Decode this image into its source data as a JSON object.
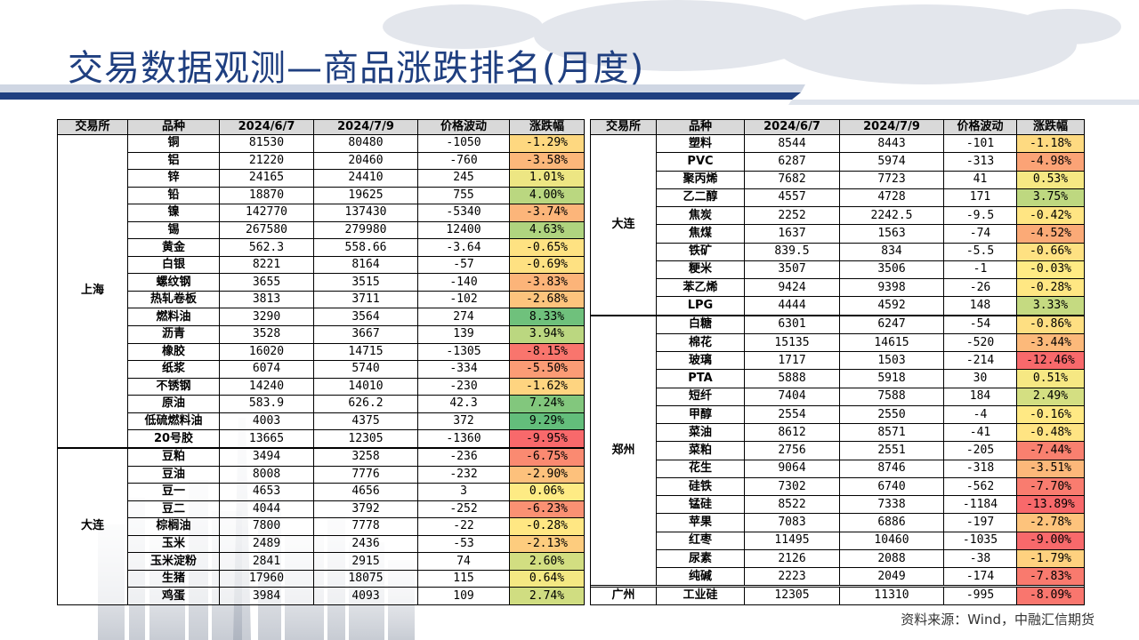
{
  "title": "交易数据观测—商品涨跌排名(月度)",
  "headers": [
    "交易所",
    "品种",
    "2024/6/7",
    "2024/7/9",
    "价格波动",
    "涨跌幅"
  ],
  "colors": {
    "title": "#1f3f80",
    "decline_strong": "#f8696b",
    "rise_strong": "#63be7b",
    "neutral": "#ffeb84"
  },
  "left_table": {
    "groups": [
      {
        "exchange": "上海",
        "rows": [
          {
            "name": "铜",
            "p1": "81530",
            "p2": "80480",
            "diff": "-1050",
            "pct": "-1.29%",
            "v": -1.29
          },
          {
            "name": "铝",
            "p1": "21220",
            "p2": "20460",
            "diff": "-760",
            "pct": "-3.58%",
            "v": -3.58
          },
          {
            "name": "锌",
            "p1": "24165",
            "p2": "24410",
            "diff": "245",
            "pct": "1.01%",
            "v": 1.01
          },
          {
            "name": "铅",
            "p1": "18870",
            "p2": "19625",
            "diff": "755",
            "pct": "4.00%",
            "v": 4.0
          },
          {
            "name": "镍",
            "p1": "142770",
            "p2": "137430",
            "diff": "-5340",
            "pct": "-3.74%",
            "v": -3.74
          },
          {
            "name": "锡",
            "p1": "267580",
            "p2": "279980",
            "diff": "12400",
            "pct": "4.63%",
            "v": 4.63
          },
          {
            "name": "黄金",
            "p1": "562.3",
            "p2": "558.66",
            "diff": "-3.64",
            "pct": "-0.65%",
            "v": -0.65
          },
          {
            "name": "白银",
            "p1": "8221",
            "p2": "8164",
            "diff": "-57",
            "pct": "-0.69%",
            "v": -0.69
          },
          {
            "name": "螺纹钢",
            "p1": "3655",
            "p2": "3515",
            "diff": "-140",
            "pct": "-3.83%",
            "v": -3.83
          },
          {
            "name": "热轧卷板",
            "p1": "3813",
            "p2": "3711",
            "diff": "-102",
            "pct": "-2.68%",
            "v": -2.68
          },
          {
            "name": "燃料油",
            "p1": "3290",
            "p2": "3564",
            "diff": "274",
            "pct": "8.33%",
            "v": 8.33
          },
          {
            "name": "沥青",
            "p1": "3528",
            "p2": "3667",
            "diff": "139",
            "pct": "3.94%",
            "v": 3.94
          },
          {
            "name": "橡胶",
            "p1": "16020",
            "p2": "14715",
            "diff": "-1305",
            "pct": "-8.15%",
            "v": -8.15
          },
          {
            "name": "纸浆",
            "p1": "6074",
            "p2": "5740",
            "diff": "-334",
            "pct": "-5.50%",
            "v": -5.5
          },
          {
            "name": "不锈钢",
            "p1": "14240",
            "p2": "14010",
            "diff": "-230",
            "pct": "-1.62%",
            "v": -1.62
          },
          {
            "name": "原油",
            "p1": "583.9",
            "p2": "626.2",
            "diff": "42.3",
            "pct": "7.24%",
            "v": 7.24
          },
          {
            "name": "低硫燃料油",
            "p1": "4003",
            "p2": "4375",
            "diff": "372",
            "pct": "9.29%",
            "v": 9.29
          },
          {
            "name": "20号胶",
            "p1": "13665",
            "p2": "12305",
            "diff": "-1360",
            "pct": "-9.95%",
            "v": -9.95
          }
        ]
      },
      {
        "exchange": "大连",
        "rows": [
          {
            "name": "豆粕",
            "p1": "3494",
            "p2": "3258",
            "diff": "-236",
            "pct": "-6.75%",
            "v": -6.75
          },
          {
            "name": "豆油",
            "p1": "8008",
            "p2": "7776",
            "diff": "-232",
            "pct": "-2.90%",
            "v": -2.9
          },
          {
            "name": "豆一",
            "p1": "4653",
            "p2": "4656",
            "diff": "3",
            "pct": "0.06%",
            "v": 0.06
          },
          {
            "name": "豆二",
            "p1": "4044",
            "p2": "3792",
            "diff": "-252",
            "pct": "-6.23%",
            "v": -6.23
          },
          {
            "name": "棕榈油",
            "p1": "7800",
            "p2": "7778",
            "diff": "-22",
            "pct": "-0.28%",
            "v": -0.28
          },
          {
            "name": "玉米",
            "p1": "2489",
            "p2": "2436",
            "diff": "-53",
            "pct": "-2.13%",
            "v": -2.13
          },
          {
            "name": "玉米淀粉",
            "p1": "2841",
            "p2": "2915",
            "diff": "74",
            "pct": "2.60%",
            "v": 2.6
          },
          {
            "name": "生猪",
            "p1": "17960",
            "p2": "18075",
            "diff": "115",
            "pct": "0.64%",
            "v": 0.64
          },
          {
            "name": "鸡蛋",
            "p1": "3984",
            "p2": "4093",
            "diff": "109",
            "pct": "2.74%",
            "v": 2.74
          }
        ]
      }
    ]
  },
  "right_table": {
    "groups": [
      {
        "exchange": "大连",
        "rows": [
          {
            "name": "塑料",
            "p1": "8544",
            "p2": "8443",
            "diff": "-101",
            "pct": "-1.18%",
            "v": -1.18
          },
          {
            "name": "PVC",
            "p1": "6287",
            "p2": "5974",
            "diff": "-313",
            "pct": "-4.98%",
            "v": -4.98
          },
          {
            "name": "聚丙烯",
            "p1": "7682",
            "p2": "7723",
            "diff": "41",
            "pct": "0.53%",
            "v": 0.53
          },
          {
            "name": "乙二醇",
            "p1": "4557",
            "p2": "4728",
            "diff": "171",
            "pct": "3.75%",
            "v": 3.75
          },
          {
            "name": "焦炭",
            "p1": "2252",
            "p2": "2242.5",
            "diff": "-9.5",
            "pct": "-0.42%",
            "v": -0.42
          },
          {
            "name": "焦煤",
            "p1": "1637",
            "p2": "1563",
            "diff": "-74",
            "pct": "-4.52%",
            "v": -4.52
          },
          {
            "name": "铁矿",
            "p1": "839.5",
            "p2": "834",
            "diff": "-5.5",
            "pct": "-0.66%",
            "v": -0.66
          },
          {
            "name": "粳米",
            "p1": "3507",
            "p2": "3506",
            "diff": "-1",
            "pct": "-0.03%",
            "v": -0.03
          },
          {
            "name": "苯乙烯",
            "p1": "9424",
            "p2": "9398",
            "diff": "-26",
            "pct": "-0.28%",
            "v": -0.28
          },
          {
            "name": "LPG",
            "p1": "4444",
            "p2": "4592",
            "diff": "148",
            "pct": "3.33%",
            "v": 3.33
          }
        ]
      },
      {
        "exchange": "郑州",
        "rows": [
          {
            "name": "白糖",
            "p1": "6301",
            "p2": "6247",
            "diff": "-54",
            "pct": "-0.86%",
            "v": -0.86
          },
          {
            "name": "棉花",
            "p1": "15135",
            "p2": "14615",
            "diff": "-520",
            "pct": "-3.44%",
            "v": -3.44
          },
          {
            "name": "玻璃",
            "p1": "1717",
            "p2": "1503",
            "diff": "-214",
            "pct": "-12.46%",
            "v": -12.46
          },
          {
            "name": "PTA",
            "p1": "5888",
            "p2": "5918",
            "diff": "30",
            "pct": "0.51%",
            "v": 0.51
          },
          {
            "name": "短纤",
            "p1": "7404",
            "p2": "7588",
            "diff": "184",
            "pct": "2.49%",
            "v": 2.49
          },
          {
            "name": "甲醇",
            "p1": "2554",
            "p2": "2550",
            "diff": "-4",
            "pct": "-0.16%",
            "v": -0.16
          },
          {
            "name": "菜油",
            "p1": "8612",
            "p2": "8571",
            "diff": "-41",
            "pct": "-0.48%",
            "v": -0.48
          },
          {
            "name": "菜粕",
            "p1": "2756",
            "p2": "2551",
            "diff": "-205",
            "pct": "-7.44%",
            "v": -7.44
          },
          {
            "name": "花生",
            "p1": "9064",
            "p2": "8746",
            "diff": "-318",
            "pct": "-3.51%",
            "v": -3.51
          },
          {
            "name": "硅铁",
            "p1": "7302",
            "p2": "6740",
            "diff": "-562",
            "pct": "-7.70%",
            "v": -7.7
          },
          {
            "name": "锰硅",
            "p1": "8522",
            "p2": "7338",
            "diff": "-1184",
            "pct": "-13.89%",
            "v": -13.89
          },
          {
            "name": "苹果",
            "p1": "7083",
            "p2": "6886",
            "diff": "-197",
            "pct": "-2.78%",
            "v": -2.78
          },
          {
            "name": "红枣",
            "p1": "11495",
            "p2": "10460",
            "diff": "-1035",
            "pct": "-9.00%",
            "v": -9.0
          },
          {
            "name": "尿素",
            "p1": "2126",
            "p2": "2088",
            "diff": "-38",
            "pct": "-1.79%",
            "v": -1.79
          },
          {
            "name": "纯碱",
            "p1": "2223",
            "p2": "2049",
            "diff": "-174",
            "pct": "-7.83%",
            "v": -7.83
          }
        ]
      },
      {
        "exchange": "广州",
        "rows": [
          {
            "name": "工业硅",
            "p1": "12305",
            "p2": "11310",
            "diff": "-995",
            "pct": "-8.09%",
            "v": -8.09
          }
        ]
      }
    ]
  },
  "source": "资料来源：Wind，中融汇信期货"
}
